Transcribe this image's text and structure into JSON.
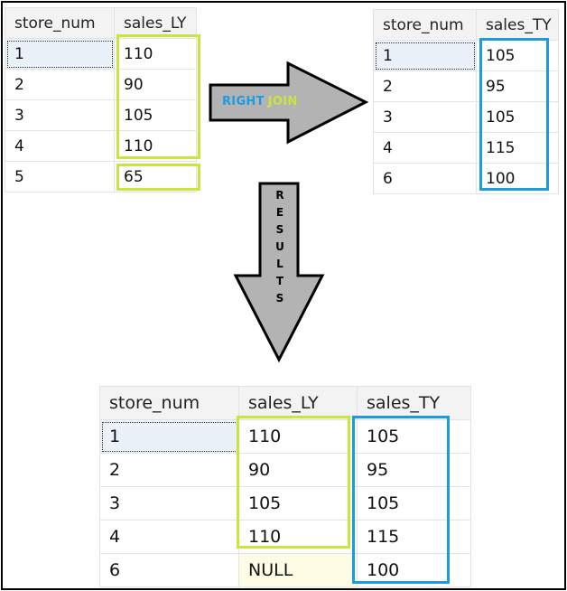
{
  "left_table": {
    "headers": [
      "store_num",
      "sales_LY"
    ],
    "rows": [
      [
        "1",
        "110"
      ],
      [
        "2",
        "90"
      ],
      [
        "3",
        "105"
      ],
      [
        "4",
        "110"
      ],
      [
        "5",
        "65"
      ]
    ]
  },
  "right_table": {
    "headers": [
      "store_num",
      "sales_TY"
    ],
    "rows": [
      [
        "1",
        "105"
      ],
      [
        "2",
        "95"
      ],
      [
        "3",
        "105"
      ],
      [
        "4",
        "115"
      ],
      [
        "6",
        "100"
      ]
    ]
  },
  "join_label": {
    "right": "RIGHT",
    "join": "JOIN"
  },
  "results_label": [
    "R",
    "E",
    "S",
    "U",
    "L",
    "T",
    "S"
  ],
  "result_table": {
    "headers": [
      "store_num",
      "sales_LY",
      "sales_TY"
    ],
    "rows": [
      [
        "1",
        "110",
        "105"
      ],
      [
        "2",
        "90",
        "95"
      ],
      [
        "3",
        "105",
        "105"
      ],
      [
        "4",
        "110",
        "115"
      ],
      [
        "6",
        "NULL",
        "100"
      ]
    ]
  },
  "colors": {
    "highlight_green": "#c8e63c",
    "highlight_blue": "#1e9be0",
    "arrow_fill": "#b3b3b3",
    "null_cell_bg": "#fffce6"
  }
}
